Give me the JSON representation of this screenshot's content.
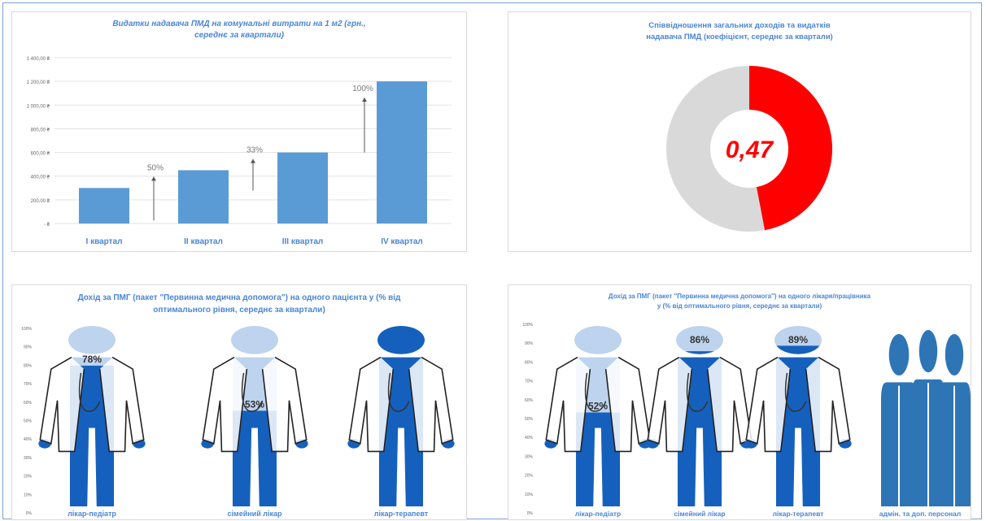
{
  "colors": {
    "bar": "#5b9bd5",
    "title": "#4a86d6",
    "donut_value": "#ff0000",
    "donut_rest": "#d9d9d9",
    "figure_dark": "#1560bd",
    "figure_light": "#bdd3ee",
    "person_icons": "#2e75b6"
  },
  "chart_data": [
    {
      "type": "bar",
      "title": "Видатки надавача ПМД на комунальні витрати на 1 м2 (грн., середнє за квартали)",
      "categories": [
        "І квартал",
        "ІІ квартал",
        "ІІІ квартал",
        "IV квартал"
      ],
      "values": [
        300,
        450,
        600,
        1200
      ],
      "ylim": [
        0,
        1400
      ],
      "yticks": [
        "-  ₴",
        "200,00 ₴",
        "400,00 ₴",
        "600,00 ₴",
        "800,00 ₴",
        "1 000,00 ₴",
        "1 200,00 ₴",
        "1 400,00 ₴"
      ],
      "growth_labels": [
        "50%",
        "33%",
        "100%"
      ],
      "grid": true
    },
    {
      "type": "pie",
      "title": "Співвідношення загальних доходів та видатків надавача ПМД (коефіцієнт, середнє за квартали)",
      "value": 0.47,
      "center_label": "0,47"
    },
    {
      "type": "bar",
      "title": "Дохід за ПМГ (пакет \"Первинна медична допомога\") на одного пацієнта у (% від оптимального рівня, середнє за квартали)",
      "ylim": [
        0,
        100
      ],
      "yticks": [
        "0%",
        "10%",
        "20%",
        "30%",
        "40%",
        "50%",
        "60%",
        "70%",
        "80%",
        "90%",
        "100%"
      ],
      "categories": [
        "лікар-педіатр",
        "сімейний лікар",
        "лікар-терапевт"
      ],
      "values": [
        78,
        53,
        100
      ],
      "value_labels": [
        "78%",
        "53%",
        ""
      ]
    },
    {
      "type": "bar",
      "title": "Дохід за ПМГ (пакет \"Первинна медична допомога\") на одного лікаря/працівника у (% від оптимального рівня, середнє за квартали)",
      "ylim": [
        0,
        100
      ],
      "yticks": [
        "0%",
        "10%",
        "20%",
        "30%",
        "40%",
        "50%",
        "60%",
        "70%",
        "80%",
        "90%",
        "100%"
      ],
      "categories": [
        "лікар-педіатр",
        "сімейний лікар",
        "лікар-терапевт",
        "адмін. та доп. персонал"
      ],
      "values": [
        52,
        86,
        89,
        100
      ],
      "value_labels": [
        "52%",
        "86%",
        "89%",
        ""
      ]
    }
  ]
}
